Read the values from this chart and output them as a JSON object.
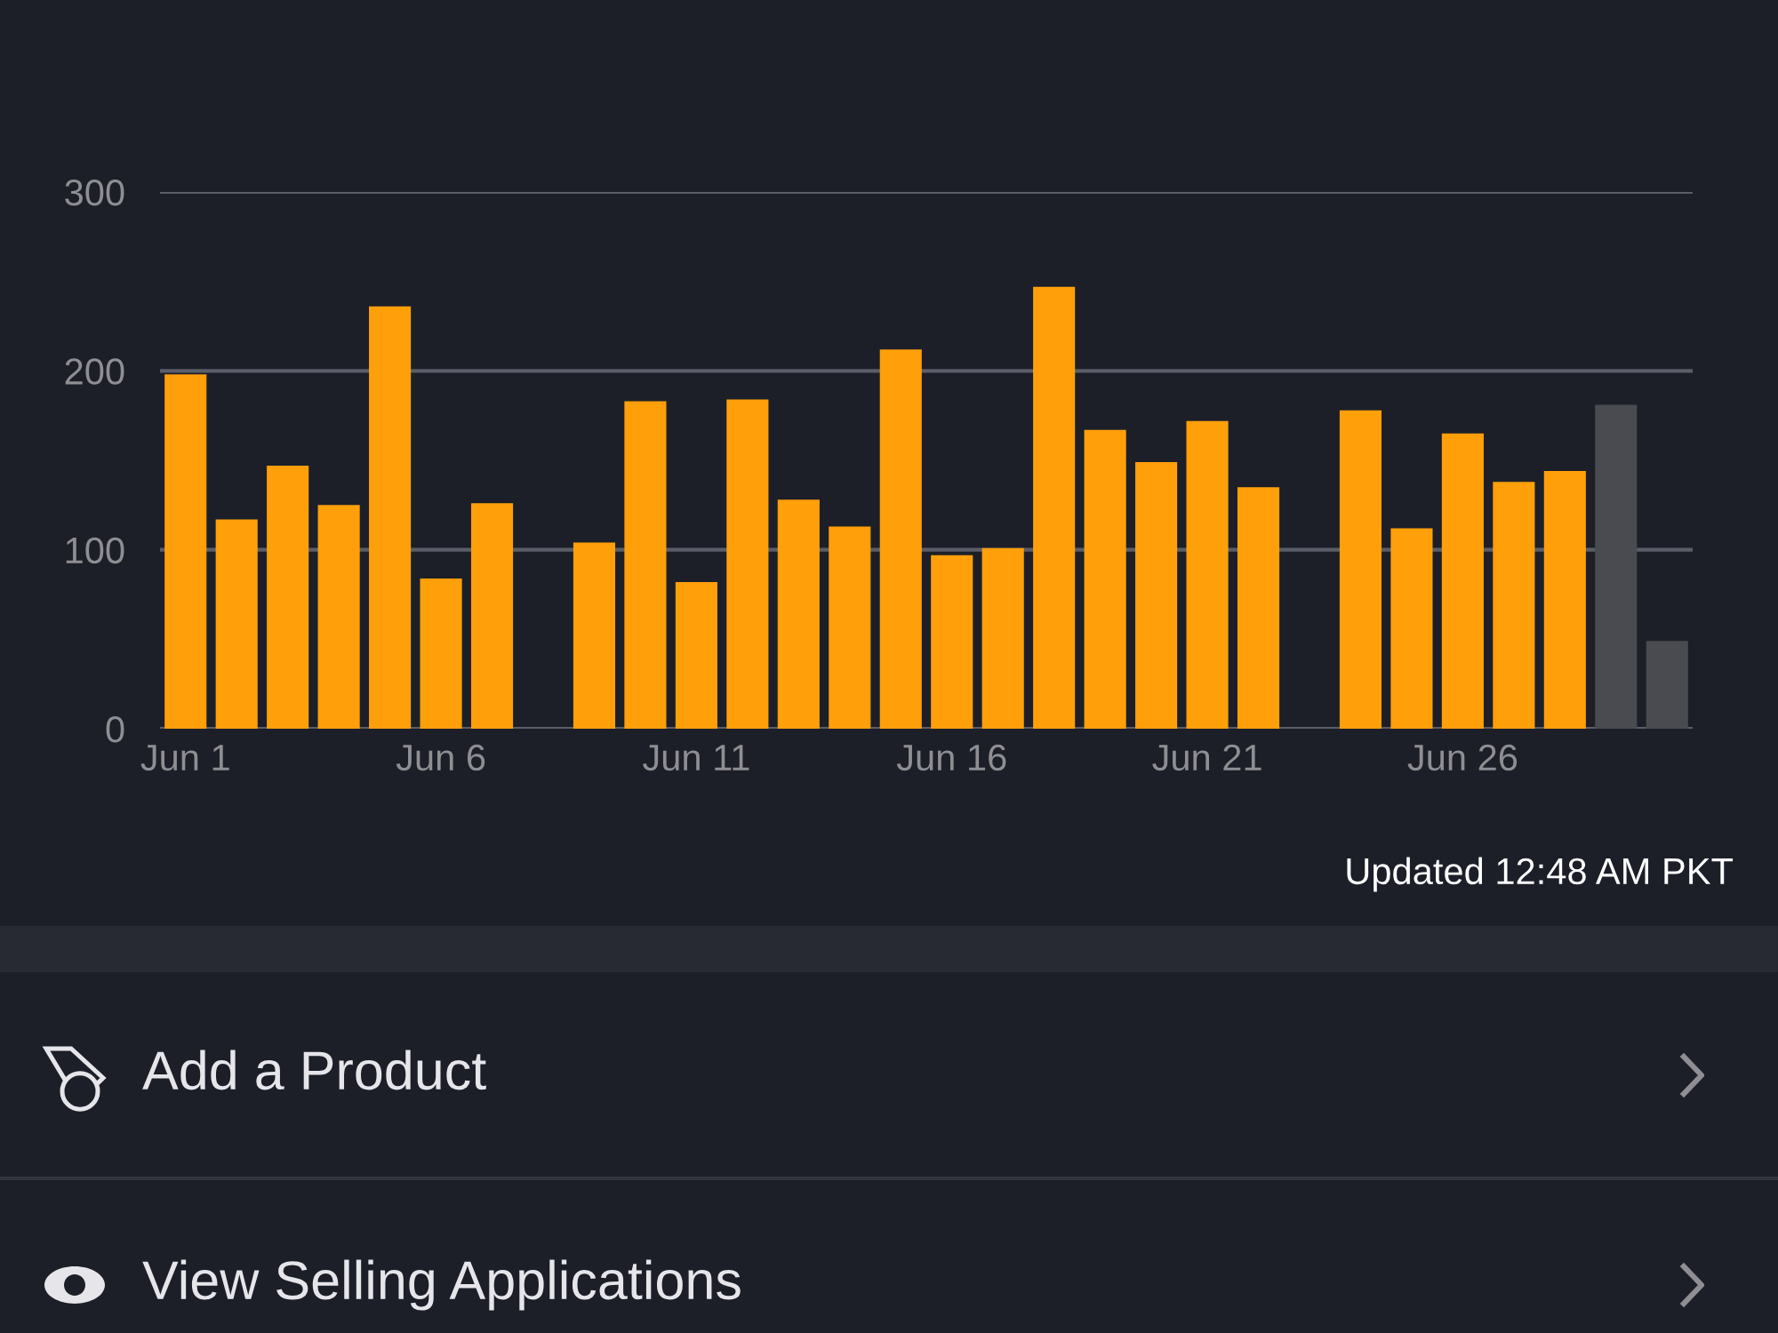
{
  "chart_data": {
    "type": "bar",
    "categories": [
      "Jun 1",
      null,
      null,
      null,
      null,
      "Jun 6",
      null,
      null,
      null,
      null,
      "Jun 11",
      null,
      null,
      null,
      null,
      "Jun 16",
      null,
      null,
      null,
      null,
      "Jun 21",
      null,
      null,
      null,
      null,
      "Jun 26",
      null,
      null,
      null,
      null
    ],
    "values": [
      198,
      117,
      147,
      125,
      236,
      84,
      126,
      0,
      104,
      183,
      82,
      184,
      128,
      113,
      212,
      97,
      101,
      247,
      167,
      149,
      172,
      135,
      0,
      178,
      112,
      165,
      138,
      144,
      181,
      49
    ],
    "colors": [
      "#ff9f0a",
      "#ff9f0a",
      "#ff9f0a",
      "#ff9f0a",
      "#ff9f0a",
      "#ff9f0a",
      "#ff9f0a",
      "#ff9f0a",
      "#ff9f0a",
      "#ff9f0a",
      "#ff9f0a",
      "#ff9f0a",
      "#ff9f0a",
      "#ff9f0a",
      "#ff9f0a",
      "#ff9f0a",
      "#ff9f0a",
      "#ff9f0a",
      "#ff9f0a",
      "#ff9f0a",
      "#ff9f0a",
      "#ff9f0a",
      "#ff9f0a",
      "#ff9f0a",
      "#ff9f0a",
      "#ff9f0a",
      "#ff9f0a",
      "#ff9f0a",
      "#4a4b50",
      "#4a4b50"
    ],
    "ylim": [
      0,
      300
    ],
    "yticks": [
      0,
      100,
      200,
      300
    ],
    "grid": "y",
    "annotations": [
      "Updated 12:48 AM PKT",
      "Add a Product",
      "View Selling Applications"
    ]
  }
}
